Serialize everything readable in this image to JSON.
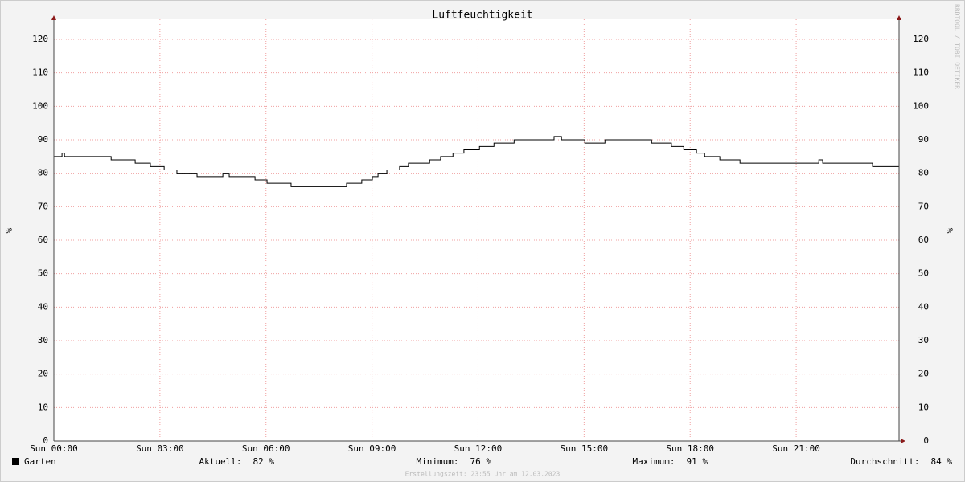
{
  "chart_data": {
    "type": "line",
    "step": "post",
    "title": "Luftfeuchtigkeit",
    "y_label": "%",
    "x": [
      0,
      0.23,
      0.3,
      1.62,
      2.3,
      2.73,
      3.12,
      3.48,
      4.05,
      4.78,
      4.96,
      5.69,
      6.03,
      6.71,
      8.28,
      8.71,
      9.01,
      9.17,
      9.42,
      9.78,
      10.03,
      10.63,
      10.94,
      11.29,
      11.6,
      12.04,
      12.45,
      13.02,
      14.15,
      14.36,
      15.02,
      15.59,
      16.91,
      17.47,
      17.82,
      18.18,
      18.41,
      18.84,
      19.41,
      21.64,
      21.75,
      23.16,
      23.91
    ],
    "series": [
      {
        "name": "Garten",
        "color": "#000000",
        "values": [
          85,
          86,
          85,
          84,
          83,
          82,
          81,
          80,
          79,
          80,
          79,
          78,
          77,
          76,
          77,
          78,
          79,
          80,
          81,
          82,
          83,
          84,
          85,
          86,
          87,
          88,
          89,
          90,
          91,
          90,
          89,
          90,
          89,
          88,
          87,
          86,
          85,
          84,
          83,
          84,
          83,
          82,
          82
        ]
      }
    ],
    "xlim": [
      0,
      23.91
    ],
    "xticks": [
      {
        "value": 0,
        "label": "Sun 00:00"
      },
      {
        "value": 3,
        "label": "Sun 03:00"
      },
      {
        "value": 6,
        "label": "Sun 06:00"
      },
      {
        "value": 9,
        "label": "Sun 09:00"
      },
      {
        "value": 12,
        "label": "Sun 12:00"
      },
      {
        "value": 15,
        "label": "Sun 15:00"
      },
      {
        "value": 18,
        "label": "Sun 18:00"
      },
      {
        "value": 21,
        "label": "Sun 21:00"
      }
    ],
    "ylim": [
      0,
      126
    ],
    "yticks": [
      0,
      10,
      20,
      30,
      40,
      50,
      60,
      70,
      80,
      90,
      100,
      110,
      120
    ],
    "grid": true,
    "stats": [
      {
        "label": "Aktuell:",
        "value": "82 %"
      },
      {
        "label": "Minimum:",
        "value": "76 %"
      },
      {
        "label": "Maximum:",
        "value": "91 %"
      },
      {
        "label": "Durchschnitt:",
        "value": "84 %"
      }
    ],
    "watermark": "RRDTOOL / TOBI OETIKER",
    "footer": "Erstellungszeit: 23:55 Uhr am 12.03.2023"
  }
}
